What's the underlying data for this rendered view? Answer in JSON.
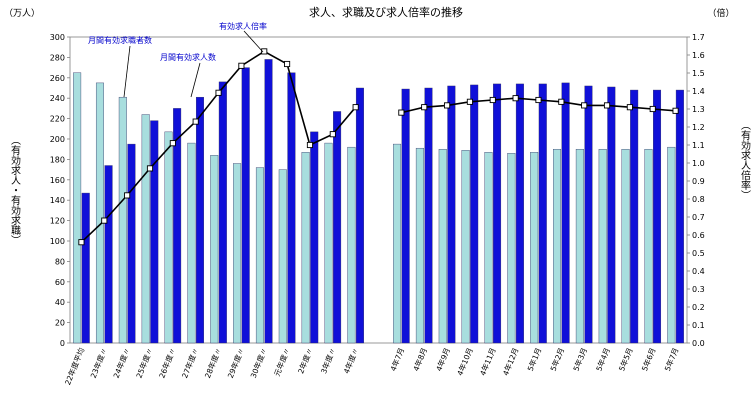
{
  "chart_data": {
    "type": "bar",
    "title": "求人、求職及び求人倍率の推移",
    "left_unit": "（万人）",
    "right_unit": "（倍）",
    "ylabel_left": "（有効求人・有効求職）",
    "ylabel_right": "（有効求人倍率）",
    "ylim_left": [
      0,
      300
    ],
    "yticks_left": [
      "0",
      "20",
      "40",
      "60",
      "80",
      "100",
      "120",
      "140",
      "160",
      "180",
      "200",
      "220",
      "240",
      "260",
      "280",
      "300"
    ],
    "ylim_right": [
      0,
      1.7
    ],
    "yticks_right": [
      "0.0",
      "0.1",
      "0.2",
      "0.3",
      "0.4",
      "0.5",
      "0.6",
      "0.7",
      "0.8",
      "0.9",
      "1.0",
      "1.1",
      "1.2",
      "1.3",
      "1.4",
      "1.5",
      "1.6",
      "1.7"
    ],
    "categories": [
      "22年度平均",
      "23年度〃",
      "24年度〃",
      "25年度〃",
      "26年度〃",
      "27年度〃",
      "28年度〃",
      "29年度〃",
      "30年度〃",
      "元年度〃",
      "2年度〃",
      "3年度〃",
      "4年度〃",
      "",
      "4年7月",
      "4年8月",
      "4年9月",
      "4年10月",
      "4年11月",
      "4年12月",
      "5年1月",
      "5年2月",
      "5年3月",
      "5年4月",
      "5年5月",
      "5年6月",
      "5年7月"
    ],
    "series": [
      {
        "name": "月間有効求職者数",
        "kind": "bar",
        "axis": "left",
        "color": "#a8dede",
        "values": [
          265,
          255,
          241,
          224,
          207,
          196,
          184,
          176,
          172,
          170,
          187,
          196,
          192,
          null,
          195,
          191,
          190,
          189,
          187,
          186,
          187,
          190,
          190,
          190,
          190,
          190,
          192
        ]
      },
      {
        "name": "月間有効求人数",
        "kind": "bar",
        "axis": "left",
        "color": "#1010d8",
        "values": [
          147,
          174,
          195,
          218,
          230,
          241,
          256,
          270,
          278,
          265,
          207,
          227,
          250,
          null,
          249,
          250,
          252,
          253,
          254,
          254,
          254,
          255,
          252,
          251,
          248,
          248,
          248
        ]
      },
      {
        "name": "有効求人倍率",
        "kind": "line",
        "axis": "right",
        "color": "#000000",
        "values": [
          0.56,
          0.68,
          0.82,
          0.97,
          1.11,
          1.23,
          1.39,
          1.54,
          1.62,
          1.55,
          1.1,
          1.16,
          1.31,
          null,
          1.28,
          1.31,
          1.32,
          1.34,
          1.35,
          1.36,
          1.35,
          1.34,
          1.32,
          1.32,
          1.31,
          1.3,
          1.29
        ]
      }
    ],
    "annotations": [
      "有効求人倍率",
      "月間有効求職者数",
      "月間有効求人数"
    ],
    "grid": false
  }
}
